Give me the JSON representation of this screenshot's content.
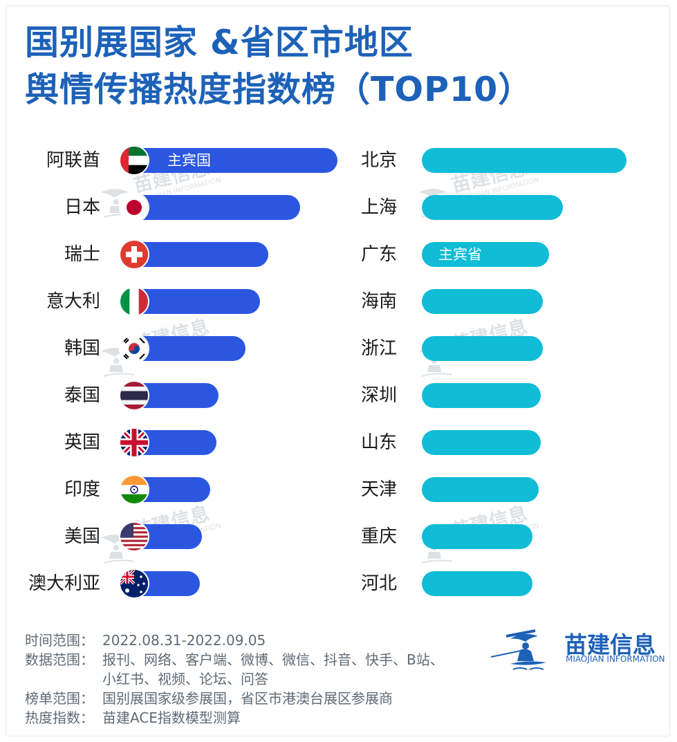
{
  "title": {
    "line1": "国别展国家 &省区市地区",
    "line2": "舆情传播热度指数榜（TOP10）"
  },
  "watermark": {
    "text_zh": "苗建信息",
    "text_en": "MIAOJIAN INFORMATION"
  },
  "chart_data": [
    {
      "type": "bar",
      "orientation": "horizontal",
      "categories": [
        "阿联酋",
        "日本",
        "瑞士",
        "意大利",
        "韩国",
        "泰国",
        "英国",
        "印度",
        "美国",
        "澳大利亚"
      ],
      "values": [
        100,
        82,
        67,
        63,
        56,
        43,
        42,
        39,
        35,
        34
      ],
      "highlight": {
        "index": 0,
        "label": "主宾国"
      },
      "flags": [
        "uae-flag-icon",
        "japan-flag-icon",
        "switzerland-flag-icon",
        "italy-flag-icon",
        "korea-flag-icon",
        "thailand-flag-icon",
        "uk-flag-icon",
        "india-flag-icon",
        "usa-flag-icon",
        "australia-flag-icon"
      ],
      "color": "#2b57e0"
    },
    {
      "type": "bar",
      "orientation": "horizontal",
      "categories": [
        "北京",
        "上海",
        "广东",
        "海南",
        "浙江",
        "深圳",
        "山东",
        "天津",
        "重庆",
        "河北"
      ],
      "values": [
        100,
        69,
        62,
        59,
        59,
        58,
        58,
        57,
        54,
        54
      ],
      "highlight": {
        "index": 2,
        "label": "主宾省"
      },
      "color": "#10bcd6"
    }
  ],
  "footer": {
    "time_label": "时间范围：",
    "time_value": "2022.08.31-2022.09.05",
    "data_label": "数据范围：",
    "data_value_1": "报刊、网络、客户端、微博、微信、抖音、快手、B站、",
    "data_value_2": "小红书、视频、论坛、问答",
    "list_label": "榜单范围：",
    "list_value": "国别展国家级参展国，省区市港澳台展区参展商",
    "heat_label": "热度指数：",
    "heat_value": "苗建ACE指数模型测算"
  },
  "logo": {
    "text_zh": "苗建信息",
    "text_en": "MIAOJIAN INFORMATION"
  }
}
